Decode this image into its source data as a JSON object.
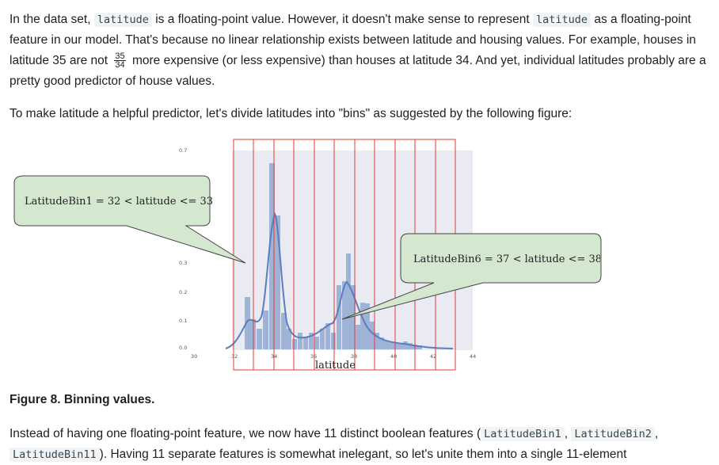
{
  "para1": {
    "t1": "In the data set, ",
    "c1": "latitude",
    "t2": " is a floating-point value. However, it doesn't make sense to represent ",
    "c2": "latitude",
    "t3": " as a floating-point feature in our model. That's because no linear relationship exists between latitude and housing values. For example, houses in latitude 35 are not ",
    "frac_num": "35",
    "frac_den": "34",
    "t4": " more expensive (or less expensive) than houses at latitude 34. And yet, individual latitudes probably are a pretty good predictor of house values."
  },
  "para2": "To make latitude a helpful predictor, let's divide latitudes into \"bins\" as suggested by the following figure:",
  "figure": {
    "callout1": "LatitudeBin1 = 32 < latitude <= 33",
    "callout2": "LatitudeBin6 = 37 < latitude <= 38",
    "xlabel": "latitude",
    "xticks": [
      "30",
      "32",
      "34",
      "36",
      "38",
      "40",
      "42",
      "44"
    ],
    "yticks": [
      "0.0",
      "0.1",
      "0.2",
      "0.3",
      "0.7"
    ]
  },
  "caption": "Figure 8. Binning values.",
  "para3": {
    "t1": "Instead of having one floating-point feature, we now have 11 distinct boolean features (",
    "c1": "LatitudeBin1",
    "t2": ", ",
    "c2": "LatitudeBin2",
    "t3": ",",
    "c3": "LatitudeBin11",
    "t4": "). Having 11 separate features is somewhat inelegant, so let's unite them into a single 11-element"
  },
  "colors": {
    "plot_bg": "#eaeaf2",
    "bar": "#9fb3d6",
    "kde": "#5a7ec0",
    "bin_line": "#e53935",
    "callout_fill": "#d4e7cf"
  }
}
